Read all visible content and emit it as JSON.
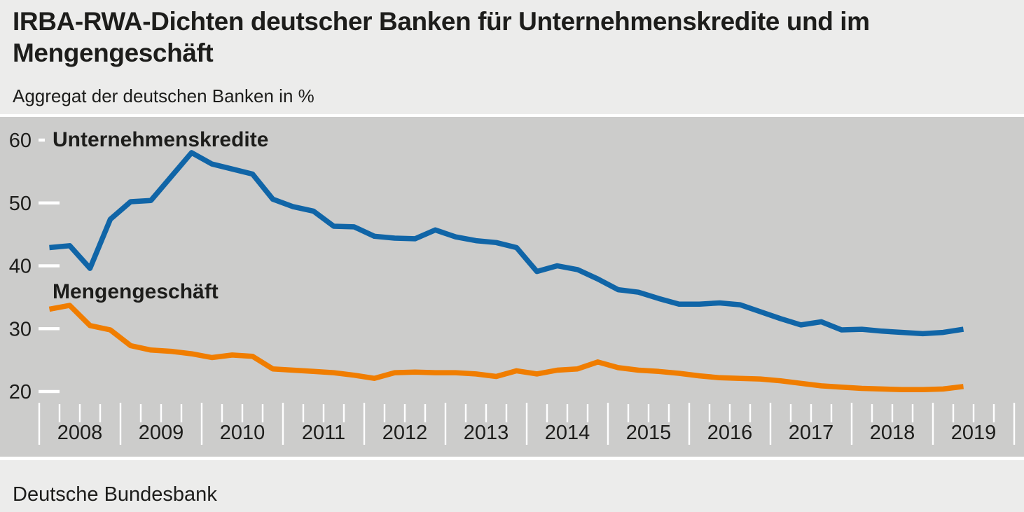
{
  "header": {
    "title_line1": "IRBA-RWA-Dichten deutscher Banken für Unternehmenskredite und im",
    "title_line2": "Mengengeschäft",
    "subtitle": "Aggregat der deutschen Banken in %"
  },
  "footer": {
    "source": "Deutsche Bundesbank"
  },
  "chart_data": {
    "type": "line",
    "title": "IRBA-RWA-Dichten deutscher Banken für Unternehmenskredite und im Mengengeschäft",
    "subtitle": "Aggregat der deutschen Banken in %",
    "unit": "%",
    "frequency": "quarterly",
    "x_start": "2008-Q1",
    "x_end": "2019-Q2",
    "years": [
      2008,
      2009,
      2010,
      2011,
      2012,
      2013,
      2014,
      2015,
      2016,
      2017,
      2018,
      2019
    ],
    "y_ticks": [
      60,
      50,
      40,
      30,
      20
    ],
    "ylim": [
      18,
      62
    ],
    "grid": false,
    "legend_position": "inline-labels",
    "background_color": "#cccccb",
    "panel_color": "#ececeb",
    "tick_color": "#ffffff",
    "text_color": "#1d1d1b",
    "series": [
      {
        "name": "Unternehmenskredite",
        "color": "#1065a7",
        "values": [
          42.9,
          43.2,
          39.6,
          47.4,
          50.2,
          50.4,
          54.2,
          58.0,
          56.2,
          55.4,
          54.6,
          50.6,
          49.4,
          48.7,
          46.3,
          46.2,
          44.7,
          44.4,
          44.3,
          45.7,
          44.6,
          44.0,
          43.7,
          42.9,
          39.1,
          40.0,
          39.4,
          37.9,
          36.2,
          35.8,
          34.8,
          33.9,
          33.9,
          34.1,
          33.8,
          32.7,
          31.6,
          30.6,
          31.1,
          29.8,
          29.9,
          29.6,
          29.4,
          29.2,
          29.4,
          29.9
        ]
      },
      {
        "name": "Mengengeschäft",
        "color": "#f07d00",
        "values": [
          33.1,
          33.7,
          30.5,
          29.8,
          27.3,
          26.6,
          26.4,
          26.0,
          25.4,
          25.8,
          25.6,
          23.6,
          23.4,
          23.2,
          23.0,
          22.6,
          22.1,
          23.0,
          23.1,
          23.0,
          23.0,
          22.8,
          22.4,
          23.3,
          22.8,
          23.4,
          23.6,
          24.7,
          23.8,
          23.4,
          23.2,
          22.9,
          22.5,
          22.2,
          22.1,
          22.0,
          21.7,
          21.3,
          20.9,
          20.7,
          20.5,
          20.4,
          20.3,
          20.3,
          20.4,
          20.8
        ]
      }
    ]
  }
}
